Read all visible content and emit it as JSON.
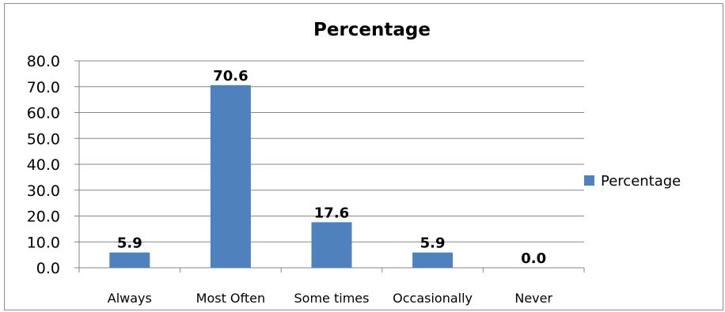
{
  "chart_data": {
    "type": "bar",
    "title": "Percentage",
    "xlabel": "",
    "ylabel": "",
    "categories": [
      "Always",
      "Most Often",
      "Some times",
      "Occasionally",
      "Never"
    ],
    "series": [
      {
        "name": "Percentage",
        "values": [
          5.9,
          70.6,
          17.6,
          5.9,
          0.0
        ]
      }
    ],
    "data_labels": [
      "5.9",
      "70.6",
      "17.6",
      "5.9",
      "0.0"
    ],
    "ylim": [
      0,
      80
    ],
    "yticks": [
      "0.0",
      "10.0",
      "20.0",
      "30.0",
      "40.0",
      "50.0",
      "60.0",
      "70.0",
      "80.0"
    ],
    "grid": true,
    "legend_position": "right",
    "colors": {
      "bar": "#4f81bd",
      "grid": "#868686",
      "axis": "#868686"
    }
  }
}
